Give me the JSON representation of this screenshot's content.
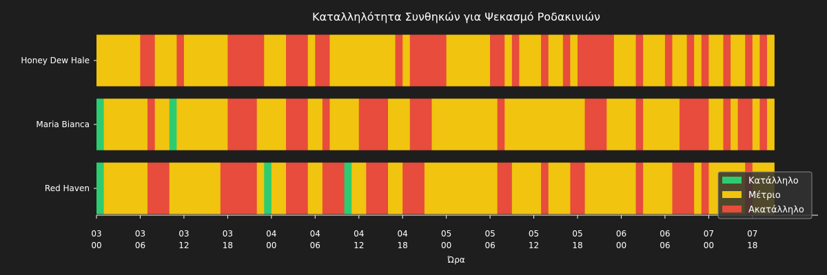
{
  "chart_data": {
    "type": "bar",
    "subtype": "horizontal-timeline",
    "title": "Καταλληλότητα Συνθηκών για Ψεκασμό Ροδακινιών",
    "xlabel": "Ώρα",
    "ylabel": "",
    "x_unit": "hours",
    "xlim": [
      0,
      99
    ],
    "x_ticks": [
      {
        "value": 0,
        "day": "03",
        "hour": "00"
      },
      {
        "value": 6,
        "day": "03",
        "hour": "06"
      },
      {
        "value": 12,
        "day": "03",
        "hour": "12"
      },
      {
        "value": 18,
        "day": "03",
        "hour": "18"
      },
      {
        "value": 24,
        "day": "04",
        "hour": "00"
      },
      {
        "value": 30,
        "day": "04",
        "hour": "06"
      },
      {
        "value": 36,
        "day": "04",
        "hour": "12"
      },
      {
        "value": 42,
        "day": "04",
        "hour": "18"
      },
      {
        "value": 48,
        "day": "05",
        "hour": "00"
      },
      {
        "value": 54,
        "day": "05",
        "hour": "06"
      },
      {
        "value": 60,
        "day": "05",
        "hour": "12"
      },
      {
        "value": 66,
        "day": "05",
        "hour": "18"
      },
      {
        "value": 72,
        "day": "06",
        "hour": "00"
      },
      {
        "value": 78,
        "day": "06",
        "hour": "06"
      },
      {
        "value": 84,
        "day": "07",
        "hour": "00"
      },
      {
        "value": 90,
        "day": "07",
        "hour": "18"
      }
    ],
    "legend": {
      "placement": "bottom-right",
      "entries": [
        {
          "key": "suitable",
          "label": "Κατάλληλο",
          "color": "#2ecc71"
        },
        {
          "key": "moderate",
          "label": "Μέτριο",
          "color": "#f1c40f"
        },
        {
          "key": "unsuitable",
          "label": "Ακατάλληλο",
          "color": "#e74c3c"
        }
      ]
    },
    "categories": [
      "Honey Dew Hale",
      "Maria Bianca",
      "Red Haven"
    ],
    "series": [
      {
        "name": "Honey Dew Hale",
        "segments": [
          [
            "moderate",
            0,
            6
          ],
          [
            "unsuitable",
            6,
            8
          ],
          [
            "moderate",
            8,
            11
          ],
          [
            "unsuitable",
            11,
            12
          ],
          [
            "moderate",
            12,
            18
          ],
          [
            "unsuitable",
            18,
            23
          ],
          [
            "moderate",
            23,
            26
          ],
          [
            "unsuitable",
            26,
            29
          ],
          [
            "moderate",
            29,
            30
          ],
          [
            "unsuitable",
            30,
            32
          ],
          [
            "moderate",
            32,
            41
          ],
          [
            "unsuitable",
            41,
            42
          ],
          [
            "moderate",
            42,
            43
          ],
          [
            "unsuitable",
            43,
            48
          ],
          [
            "moderate",
            48,
            54
          ],
          [
            "unsuitable",
            54,
            56
          ],
          [
            "moderate",
            56,
            57
          ],
          [
            "unsuitable",
            57,
            58
          ],
          [
            "moderate",
            58,
            61
          ],
          [
            "unsuitable",
            61,
            62
          ],
          [
            "moderate",
            62,
            64
          ],
          [
            "unsuitable",
            64,
            65
          ],
          [
            "moderate",
            65,
            66
          ],
          [
            "unsuitable",
            66,
            71
          ],
          [
            "moderate",
            71,
            74
          ],
          [
            "unsuitable",
            74,
            75
          ],
          [
            "moderate",
            75,
            78
          ],
          [
            "unsuitable",
            78,
            79
          ],
          [
            "moderate",
            79,
            81
          ],
          [
            "unsuitable",
            81,
            82
          ],
          [
            "moderate",
            82,
            83
          ],
          [
            "unsuitable",
            83,
            84
          ],
          [
            "moderate",
            84,
            86
          ],
          [
            "unsuitable",
            86,
            87
          ],
          [
            "moderate",
            87,
            89
          ],
          [
            "unsuitable",
            89,
            90
          ],
          [
            "moderate",
            90,
            91
          ],
          [
            "unsuitable",
            91,
            92
          ],
          [
            "moderate",
            92,
            93
          ]
        ]
      },
      {
        "name": "Maria Bianca",
        "segments": [
          [
            "suitable",
            0,
            1
          ],
          [
            "moderate",
            1,
            7
          ],
          [
            "unsuitable",
            7,
            8
          ],
          [
            "moderate",
            8,
            10
          ],
          [
            "suitable",
            10,
            11
          ],
          [
            "moderate",
            11,
            18
          ],
          [
            "unsuitable",
            18,
            22
          ],
          [
            "moderate",
            22,
            26
          ],
          [
            "unsuitable",
            26,
            29
          ],
          [
            "moderate",
            29,
            31
          ],
          [
            "unsuitable",
            31,
            32
          ],
          [
            "moderate",
            32,
            36
          ],
          [
            "unsuitable",
            36,
            40
          ],
          [
            "moderate",
            40,
            43
          ],
          [
            "unsuitable",
            43,
            46
          ],
          [
            "moderate",
            46,
            55
          ],
          [
            "unsuitable",
            55,
            56
          ],
          [
            "moderate",
            56,
            67
          ],
          [
            "unsuitable",
            67,
            70
          ],
          [
            "moderate",
            70,
            74
          ],
          [
            "unsuitable",
            74,
            75
          ],
          [
            "moderate",
            75,
            80
          ],
          [
            "unsuitable",
            80,
            84
          ],
          [
            "moderate",
            84,
            86
          ],
          [
            "unsuitable",
            86,
            87
          ],
          [
            "moderate",
            87,
            88
          ],
          [
            "unsuitable",
            88,
            90
          ],
          [
            "moderate",
            90,
            91
          ],
          [
            "unsuitable",
            91,
            92
          ],
          [
            "moderate",
            92,
            93
          ]
        ]
      },
      {
        "name": "Red Haven",
        "segments": [
          [
            "suitable",
            0,
            1
          ],
          [
            "moderate",
            1,
            7
          ],
          [
            "unsuitable",
            7,
            10
          ],
          [
            "moderate",
            10,
            17
          ],
          [
            "unsuitable",
            17,
            22
          ],
          [
            "moderate",
            22,
            23
          ],
          [
            "suitable",
            23,
            24
          ],
          [
            "moderate",
            24,
            26
          ],
          [
            "unsuitable",
            26,
            29
          ],
          [
            "moderate",
            29,
            31
          ],
          [
            "unsuitable",
            31,
            34
          ],
          [
            "suitable",
            34,
            35
          ],
          [
            "moderate",
            35,
            37
          ],
          [
            "unsuitable",
            37,
            40
          ],
          [
            "moderate",
            40,
            42
          ],
          [
            "unsuitable",
            42,
            45
          ],
          [
            "moderate",
            45,
            55
          ],
          [
            "unsuitable",
            55,
            57
          ],
          [
            "moderate",
            57,
            61
          ],
          [
            "unsuitable",
            61,
            62
          ],
          [
            "moderate",
            62,
            65
          ],
          [
            "unsuitable",
            65,
            67
          ],
          [
            "moderate",
            67,
            74
          ],
          [
            "unsuitable",
            74,
            75
          ],
          [
            "moderate",
            75,
            79
          ],
          [
            "unsuitable",
            79,
            82
          ],
          [
            "moderate",
            82,
            83
          ],
          [
            "unsuitable",
            83,
            84
          ],
          [
            "moderate",
            84,
            89
          ],
          [
            "unsuitable",
            89,
            90
          ],
          [
            "moderate",
            90,
            93
          ]
        ]
      }
    ]
  }
}
